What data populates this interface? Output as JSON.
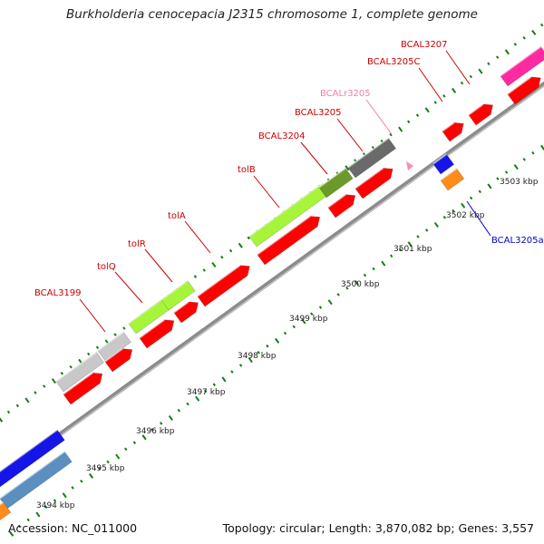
{
  "title": "Burkholderia cenocepacia J2315 chromosome 1, complete genome",
  "footer": {
    "accession": "Accession: NC_011000",
    "summary": "Topology: circular; Length: 3,870,082 bp; Genes: 3,557"
  },
  "colors": {
    "backbone": "#8c8c8c",
    "tick_dots": "#1a7a1a",
    "label_red": "#cc0000",
    "label_pink": "#f080a8",
    "label_blue": "#0000cc",
    "gene_red": "#ff0000",
    "gene_lime": "#a6f53b",
    "gene_olive": "#6b9a2a",
    "gene_darkgray": "#6a6a6a",
    "gene_lightgray": "#c8c8c8",
    "gene_blue": "#1515e8",
    "gene_steelblue": "#5a8fc0",
    "gene_orange": "#ff8c1a",
    "gene_magenta": "#ff2aa0",
    "gene_pink": "#ff88b8"
  },
  "ticks": [
    "3494 kbp",
    "3495 kbp",
    "3496 kbp",
    "3497 kbp",
    "3498 kbp",
    "3499 kbp",
    "3500 kbp",
    "3501 kbp",
    "3502 kbp",
    "3503 kbp"
  ],
  "gene_labels": [
    {
      "name": "BCAL3199",
      "color": "label_red"
    },
    {
      "name": "tolQ",
      "color": "label_red"
    },
    {
      "name": "tolR",
      "color": "label_red"
    },
    {
      "name": "tolA",
      "color": "label_red"
    },
    {
      "name": "tolB",
      "color": "label_red"
    },
    {
      "name": "BCAL3204",
      "color": "label_red"
    },
    {
      "name": "BCAL3205",
      "color": "label_red"
    },
    {
      "name": "BCALr3205",
      "color": "label_pink"
    },
    {
      "name": "BCAL3205C",
      "color": "label_red"
    },
    {
      "name": "BCAL3207",
      "color": "label_red"
    },
    {
      "name": "BCAL3205a",
      "color": "label_blue"
    }
  ]
}
